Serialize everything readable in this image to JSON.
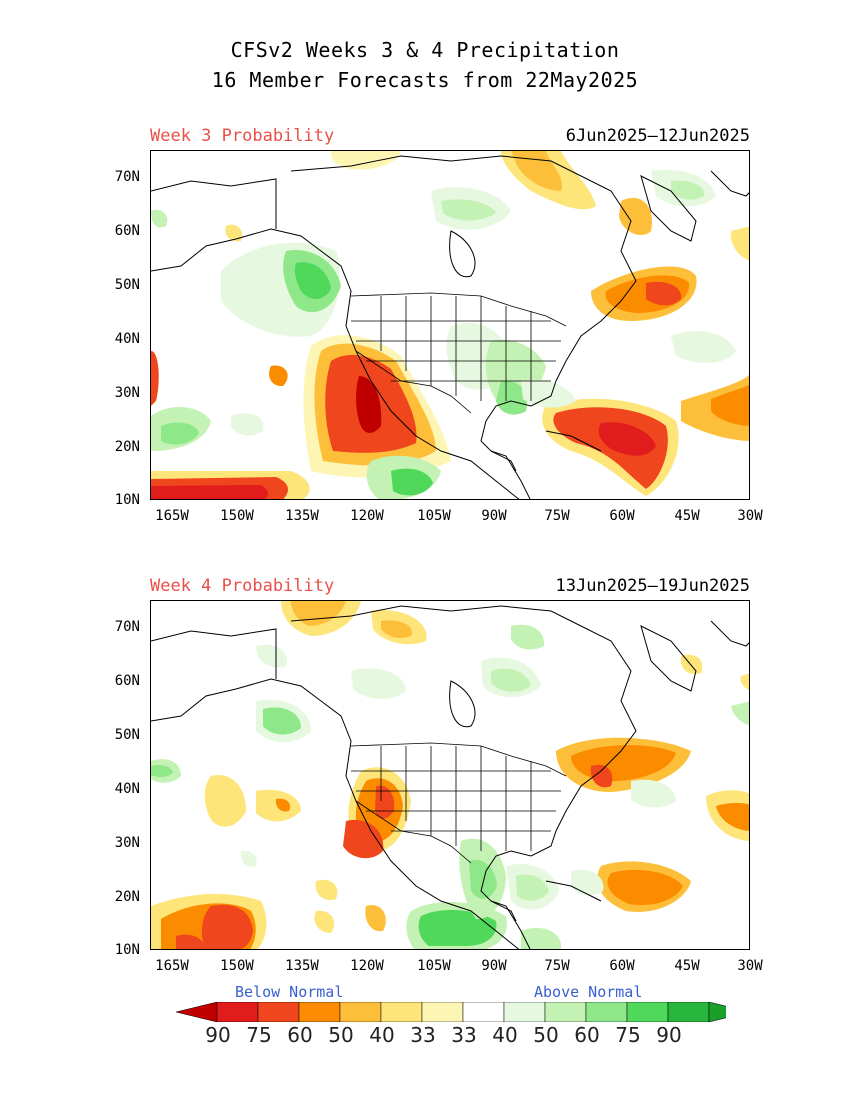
{
  "header": {
    "title_line1": "CFSv2 Weeks 3 & 4 Precipitation",
    "title_line2": "16 Member Forecasts from 22May2025"
  },
  "panels": [
    {
      "label": "Week 3 Probability",
      "dates": "6Jun2025—12Jun2025"
    },
    {
      "label": "Week 4 Probability",
      "dates": "13Jun2025—19Jun2025"
    }
  ],
  "axes": {
    "lat_labels": [
      "70N",
      "60N",
      "50N",
      "40N",
      "30N",
      "20N",
      "10N"
    ],
    "lon_labels": [
      "165W",
      "150W",
      "135W",
      "120W",
      "105W",
      "90W",
      "75W",
      "60W",
      "45W",
      "30W"
    ]
  },
  "legend": {
    "below_label": "Below Normal",
    "above_label": "Above Normal",
    "values": [
      "90",
      "75",
      "60",
      "50",
      "40",
      "33",
      "33",
      "40",
      "50",
      "60",
      "75",
      "90"
    ],
    "colors": [
      "#c00000",
      "#e01c1c",
      "#f0461e",
      "#fb8c00",
      "#fdbf3a",
      "#fde57a",
      "#fdf5b4",
      "#ffffff",
      "#e6f9e0",
      "#c4f2b4",
      "#8ee88a",
      "#4fd85a",
      "#28b63c",
      "#18a028"
    ]
  }
}
